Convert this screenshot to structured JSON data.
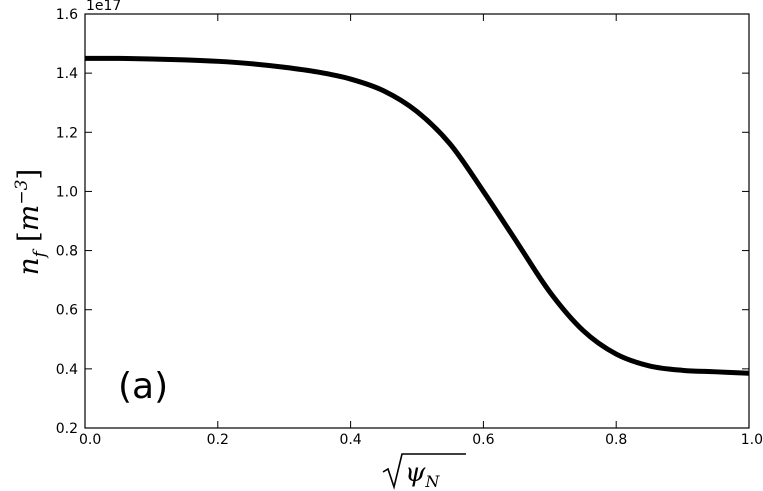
{
  "chart_data": {
    "type": "line",
    "title": "",
    "xlabel": "√ψ_N",
    "ylabel": "n_f [m^-3]",
    "y_multiplier_text": "1e17",
    "panel_label": "(a)",
    "xlim": [
      0.0,
      1.0
    ],
    "ylim": [
      0.2,
      1.6
    ],
    "x_ticks": [
      "0.0",
      "0.2",
      "0.4",
      "0.6",
      "0.8",
      "1.0"
    ],
    "y_ticks": [
      "0.2",
      "0.4",
      "0.6",
      "0.8",
      "1.0",
      "1.2",
      "1.4",
      "1.6"
    ],
    "grid": false,
    "series": [
      {
        "color": "#000000",
        "x": [
          0.0,
          0.05,
          0.1,
          0.15,
          0.2,
          0.25,
          0.3,
          0.35,
          0.4,
          0.45,
          0.5,
          0.55,
          0.6,
          0.65,
          0.7,
          0.75,
          0.8,
          0.85,
          0.9,
          0.95,
          1.0
        ],
        "y": [
          1.45,
          1.45,
          1.448,
          1.445,
          1.44,
          1.432,
          1.42,
          1.404,
          1.38,
          1.34,
          1.27,
          1.16,
          1.0,
          0.83,
          0.66,
          0.53,
          0.45,
          0.41,
          0.395,
          0.39,
          0.385
        ]
      }
    ]
  }
}
